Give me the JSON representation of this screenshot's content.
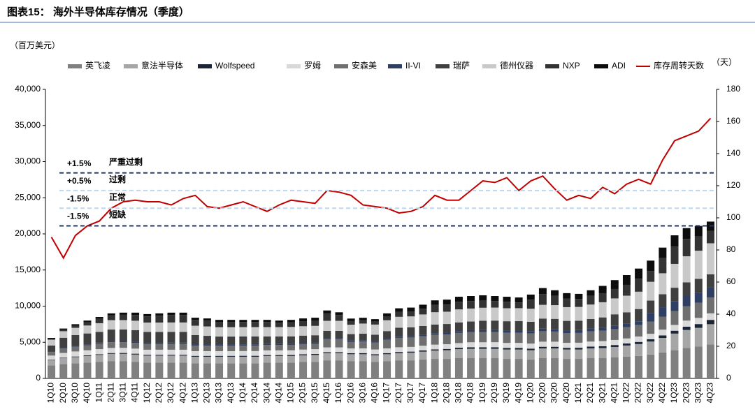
{
  "chart_data": {
    "type": "bar",
    "title": "图表15： 海外半导体库存情况（季度）",
    "y_unit": "（百万美元）",
    "y2_unit": "（天）",
    "stacked": true,
    "legend": "top",
    "categories": [
      "1Q10",
      "2Q10",
      "3Q10",
      "4Q10",
      "1Q11",
      "2Q11",
      "3Q11",
      "4Q11",
      "1Q12",
      "2Q12",
      "3Q12",
      "4Q12",
      "1Q13",
      "2Q13",
      "3Q13",
      "4Q13",
      "1Q14",
      "2Q14",
      "3Q14",
      "4Q14",
      "1Q15",
      "2Q15",
      "3Q15",
      "4Q15",
      "1Q16",
      "2Q16",
      "3Q16",
      "4Q16",
      "1Q17",
      "2Q17",
      "3Q17",
      "4Q17",
      "1Q18",
      "2Q18",
      "3Q18",
      "4Q18",
      "1Q19",
      "2Q19",
      "3Q19",
      "4Q19",
      "1Q20",
      "2Q20",
      "3Q20",
      "4Q20",
      "1Q21",
      "2Q21",
      "3Q21",
      "4Q21",
      "1Q22",
      "2Q22",
      "3Q22",
      "4Q22",
      "1Q23",
      "2Q23",
      "3Q23",
      "4Q23"
    ],
    "ylim": [
      0,
      40000
    ],
    "yticks": [
      0,
      {
        "value": 5000,
        "label": "5,000"
      },
      {
        "value": 10000,
        "label": "10,000"
      },
      {
        "value": 15000,
        "label": "15,000"
      },
      {
        "value": 20000,
        "label": "20,000"
      },
      {
        "value": 25000,
        "label": "25,000"
      },
      {
        "value": 30000,
        "label": "30,000"
      },
      {
        "value": 35000,
        "label": "35,000"
      },
      {
        "value": 40000,
        "label": "40,000"
      }
    ],
    "y2lim": [
      0,
      180
    ],
    "y2ticks": [
      0,
      20,
      40,
      60,
      80,
      100,
      120,
      140,
      160,
      180
    ],
    "reference_lines": [
      {
        "value": 128,
        "label": "+1.5%",
        "text": "严重过剩",
        "color": "#1f3864"
      },
      {
        "value": 117,
        "label": "+0.5%",
        "text": "过剩",
        "color": "#bdd7ee"
      },
      {
        "value": 106,
        "label": "-1.5%",
        "text": "正常",
        "color": "#bdd7ee"
      },
      {
        "value": 95,
        "label": "-1.5%",
        "text": "短缺",
        "color": "#1f3864"
      }
    ],
    "series": [
      {
        "name": "英飞凌",
        "color": "#808080",
        "values": [
          1800,
          2000,
          2100,
          2200,
          2300,
          2400,
          2400,
          2300,
          2200,
          2200,
          2200,
          2200,
          2100,
          2100,
          2100,
          2100,
          2100,
          2100,
          2200,
          2200,
          2200,
          2300,
          2300,
          2500,
          2500,
          2400,
          2400,
          2300,
          2400,
          2500,
          2500,
          2600,
          2700,
          2700,
          2800,
          2800,
          2800,
          2800,
          2700,
          2700,
          2600,
          2800,
          2800,
          2700,
          2700,
          2800,
          2800,
          2900,
          3000,
          3100,
          3300,
          3600,
          3900,
          4200,
          4400,
          4700
        ]
      },
      {
        "name": "意法半导体",
        "color": "#a6a6a6",
        "values": [
          700,
          800,
          850,
          900,
          950,
          1000,
          1000,
          1000,
          950,
          950,
          950,
          950,
          900,
          900,
          900,
          900,
          900,
          900,
          900,
          900,
          900,
          900,
          950,
          1000,
          1000,
          950,
          950,
          900,
          950,
          1000,
          1050,
          1100,
          1150,
          1200,
          1250,
          1300,
          1300,
          1300,
          1300,
          1300,
          1300,
          1350,
          1350,
          1300,
          1300,
          1350,
          1400,
          1450,
          1550,
          1650,
          1800,
          2000,
          2300,
          2500,
          2600,
          2800
        ]
      },
      {
        "name": "Wolfspeed",
        "color": "#1c2536",
        "values": [
          60,
          70,
          80,
          90,
          100,
          110,
          120,
          120,
          120,
          120,
          120,
          120,
          120,
          120,
          120,
          120,
          130,
          130,
          130,
          130,
          140,
          140,
          140,
          140,
          140,
          140,
          150,
          150,
          150,
          160,
          160,
          170,
          170,
          180,
          190,
          200,
          200,
          210,
          210,
          220,
          220,
          230,
          230,
          230,
          240,
          250,
          260,
          270,
          280,
          300,
          320,
          350,
          400,
          450,
          520,
          600
        ]
      },
      {
        "name": "罗姆",
        "color": "#d9d9d9",
        "values": [
          600,
          650,
          700,
          700,
          700,
          700,
          700,
          700,
          700,
          700,
          700,
          700,
          650,
          650,
          650,
          650,
          650,
          650,
          650,
          650,
          650,
          650,
          650,
          650,
          650,
          650,
          650,
          650,
          650,
          650,
          650,
          650,
          650,
          650,
          650,
          700,
          700,
          700,
          700,
          700,
          700,
          700,
          700,
          700,
          700,
          700,
          700,
          700,
          700,
          750,
          750,
          800,
          800,
          850,
          850,
          900
        ]
      },
      {
        "name": "安森美",
        "color": "#6f6f6f",
        "values": [
          500,
          600,
          650,
          700,
          750,
          800,
          800,
          800,
          800,
          800,
          800,
          800,
          750,
          750,
          750,
          750,
          750,
          750,
          750,
          750,
          750,
          750,
          750,
          1100,
          1100,
          900,
          950,
          950,
          1200,
          1300,
          1300,
          1300,
          1350,
          1350,
          1400,
          1400,
          1400,
          1400,
          1400,
          1400,
          1400,
          1450,
          1400,
          1350,
          1350,
          1400,
          1450,
          1500,
          1550,
          1600,
          1700,
          1800,
          1900,
          2000,
          2100,
          2200
        ]
      },
      {
        "name": "II-VI",
        "color": "#2f3f63",
        "values": [
          100,
          110,
          120,
          130,
          140,
          150,
          150,
          160,
          160,
          160,
          170,
          170,
          170,
          170,
          170,
          170,
          170,
          170,
          170,
          170,
          180,
          180,
          180,
          180,
          180,
          190,
          190,
          200,
          200,
          210,
          220,
          230,
          240,
          250,
          260,
          270,
          280,
          290,
          300,
          300,
          320,
          350,
          360,
          380,
          400,
          420,
          430,
          450,
          470,
          500,
          1200,
          1300,
          1350,
          1400,
          1400,
          1400
        ]
      },
      {
        "name": "瑞萨",
        "color": "#404040",
        "values": [
          800,
          1400,
          1500,
          1500,
          1500,
          1600,
          1600,
          1600,
          1500,
          1500,
          1500,
          1500,
          1300,
          1200,
          1100,
          1100,
          1100,
          1100,
          1000,
          1000,
          1000,
          1000,
          1000,
          1000,
          1000,
          900,
          900,
          900,
          1000,
          1200,
          1200,
          1200,
          1200,
          1200,
          1200,
          1200,
          1300,
          1300,
          1300,
          1300,
          1300,
          1400,
          1400,
          1300,
          1300,
          1300,
          1400,
          1600,
          1600,
          1700,
          1700,
          1800,
          1900,
          1900,
          1900,
          1800
        ]
      },
      {
        "name": "德州仪器",
        "color": "#c9c9c9",
        "values": [
          800,
          900,
          1000,
          1100,
          1200,
          1300,
          1300,
          1300,
          1300,
          1300,
          1300,
          1300,
          1300,
          1300,
          1300,
          1300,
          1300,
          1300,
          1300,
          1300,
          1300,
          1300,
          1300,
          1400,
          1400,
          1300,
          1400,
          1400,
          1500,
          1500,
          1500,
          1600,
          1700,
          1700,
          1800,
          1800,
          1800,
          1800,
          1800,
          1800,
          1800,
          1900,
          1900,
          1900,
          1900,
          2000,
          2100,
          2200,
          2300,
          2400,
          2600,
          2900,
          3300,
          3600,
          3900,
          4300
        ]
      },
      {
        "name": "NXP",
        "color": "#333333",
        "values": [
          100,
          200,
          300,
          450,
          600,
          650,
          730,
          800,
          850,
          950,
          1040,
          1040,
          800,
          800,
          700,
          700,
          700,
          700,
          700,
          600,
          650,
          700,
          750,
          1000,
          800,
          500,
          450,
          400,
          550,
          700,
          700,
          800,
          1000,
          1000,
          1050,
          1030,
          1000,
          900,
          900,
          800,
          1250,
          1500,
          1300,
          1200,
          1100,
          1200,
          1250,
          1300,
          1500,
          1800,
          1500,
          2100,
          2400,
          2400,
          2000,
          1700
        ]
      },
      {
        "name": "ADI",
        "color": "#0d0d0d",
        "values": [
          140,
          170,
          200,
          230,
          260,
          290,
          300,
          320,
          320,
          320,
          320,
          320,
          310,
          310,
          310,
          310,
          300,
          300,
          300,
          300,
          330,
          380,
          380,
          430,
          380,
          350,
          350,
          350,
          400,
          480,
          520,
          550,
          640,
          670,
          700,
          700,
          720,
          700,
          690,
          680,
          710,
          820,
          760,
          740,
          710,
          780,
          1010,
          1230,
          1350,
          1400,
          1430,
          1450,
          1550,
          1500,
          1430,
          1300
        ]
      },
      {
        "name": "库存周转天数",
        "type": "line",
        "axis": "y2",
        "color": "#c00000",
        "values": [
          88,
          75,
          89,
          95,
          98,
          106,
          110,
          111,
          110,
          110,
          108,
          112,
          114,
          107,
          106,
          108,
          110,
          107,
          104,
          108,
          111,
          110,
          109,
          117,
          116,
          114,
          108,
          107,
          106,
          103,
          104,
          107,
          114,
          111,
          111,
          117,
          123,
          122,
          125,
          117,
          123,
          126,
          118,
          111,
          114,
          112,
          119,
          115,
          121,
          124,
          121,
          136,
          148,
          151,
          154,
          162
        ]
      }
    ]
  }
}
